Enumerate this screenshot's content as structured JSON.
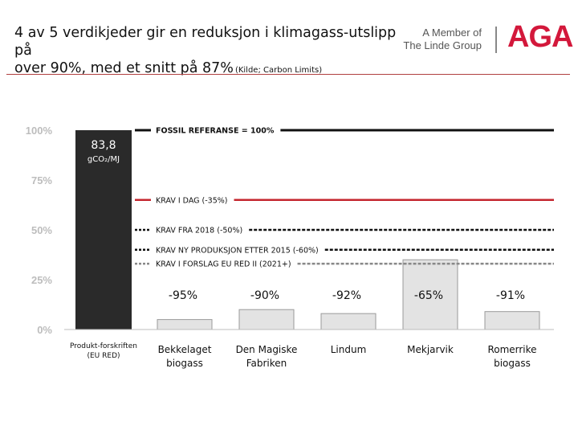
{
  "header": {
    "title_line1": "4 av 5 verdikjeder gir en reduksjon i klimagass-utslipp på",
    "title_line2": "over 90%, med et snitt på 87%",
    "source_note": "(Kilde; Carbon Limits)",
    "logo_sub_line1": "A Member of",
    "logo_sub_line2": "The Linde Group",
    "logo_text": "AGA",
    "brand_color": "#d3183b"
  },
  "chart_data": {
    "type": "bar",
    "ylim": [
      0,
      100
    ],
    "yticks": [
      0,
      25,
      50,
      75,
      100
    ],
    "ytick_labels": [
      "0%",
      "25%",
      "50%",
      "75%",
      "100%"
    ],
    "categories": [
      [
        "Produkt-forskriften",
        "(EU RED)"
      ],
      [
        "Bekkelaget",
        "biogass"
      ],
      [
        "Den Magiske",
        "Fabriken"
      ],
      [
        "Lindum"
      ],
      [
        "Mekjarvik"
      ],
      [
        "Romerrike",
        "biogass"
      ]
    ],
    "values": [
      100,
      5,
      10,
      8,
      35,
      9
    ],
    "bar_colors": [
      "#2a2a2a",
      "#e3e3e3",
      "#e3e3e3",
      "#e3e3e3",
      "#e3e3e3",
      "#e3e3e3"
    ],
    "reduction_labels": [
      "",
      "-95%",
      "-90%",
      "-92%",
      "-65%",
      "-91%"
    ],
    "first_bar_value": "83,8",
    "first_bar_unit": "gCO₂/MJ",
    "reference_lines": [
      {
        "label": "FOSSIL REFERANSE = 100%",
        "value": 100,
        "color": "#111111",
        "style": "solid",
        "bold": true
      },
      {
        "label": "KRAV I DAG (-35%)",
        "value": 65,
        "color": "#c4262e",
        "style": "solid",
        "bold": false
      },
      {
        "label": "KRAV FRA 2018 (-50%)",
        "value": 50,
        "color": "#111111",
        "style": "dashed",
        "bold": false
      },
      {
        "label": "KRAV NY PRODUKSJON ETTER 2015 (-60%)",
        "value": 40,
        "color": "#111111",
        "style": "dashed",
        "bold": false
      },
      {
        "label": "KRAV I FORSLAG EU RED II (2021+)",
        "value": 33,
        "color": "#888888",
        "style": "dashed",
        "bold": false
      }
    ]
  }
}
